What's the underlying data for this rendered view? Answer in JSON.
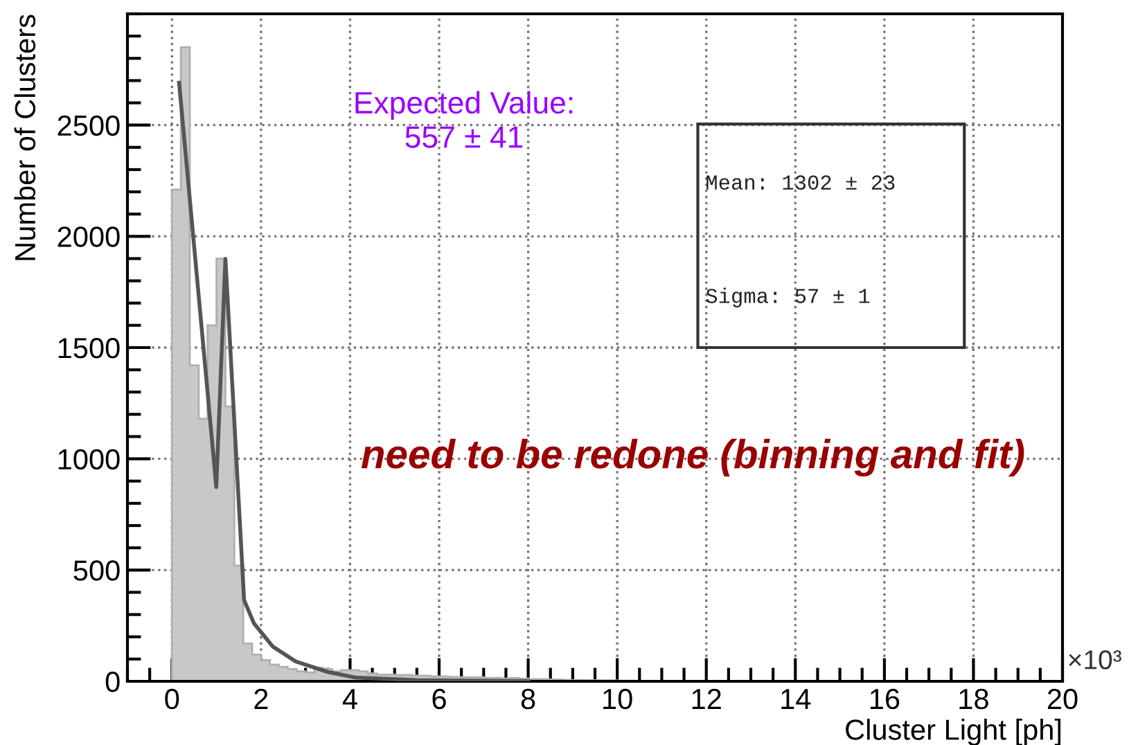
{
  "chart_data": {
    "type": "histogram",
    "xlabel": "Cluster Light [ph]",
    "ylabel": "Number of Clusters",
    "bins": [
      0,
      0.2,
      0.4,
      0.6,
      0.8,
      1.0,
      1.2,
      1.4,
      1.6,
      1.8,
      2.0,
      2.2,
      2.4,
      2.6,
      2.8,
      3.0,
      3.2,
      3.4,
      3.6,
      3.8,
      4.0,
      4.2,
      4.4,
      4.6,
      4.8,
      5.0,
      5.2,
      5.4,
      5.6,
      5.8,
      6.0,
      6.2,
      6.4,
      6.6,
      6.8,
      7.0,
      7.2,
      7.4,
      7.6,
      7.8,
      8.0,
      8.2,
      8.4,
      8.6,
      8.8,
      9.0,
      9.2,
      9.4,
      9.6,
      9.8,
      10.0,
      10.2,
      10.4,
      10.6,
      10.8,
      11.0,
      11.2,
      11.4
    ],
    "values": [
      2210,
      2850,
      1420,
      1180,
      1600,
      1900,
      1235,
      520,
      170,
      120,
      95,
      75,
      65,
      55,
      45,
      40,
      60,
      55,
      45,
      50,
      50,
      45,
      35,
      30,
      30,
      28,
      28,
      25,
      25,
      22,
      22,
      20,
      18,
      18,
      18,
      15,
      15,
      12,
      15,
      12,
      10,
      10,
      8,
      8,
      6,
      6,
      5,
      5,
      4,
      4,
      3,
      3,
      2,
      2,
      2,
      1,
      1
    ],
    "color": "#c8c8c8",
    "series": [
      {
        "type": "line",
        "color": "#555555",
        "x": [
          0.16,
          0.995,
          1.2,
          1.62,
          1.84,
          2.26,
          2.78,
          3.5,
          4.12,
          5.5,
          8.0
        ],
        "values": [
          2690,
          873,
          1899,
          365,
          261,
          157,
          89,
          42,
          17,
          5,
          1
        ]
      }
    ],
    "xlim": [
      -1,
      20
    ],
    "ylim": [
      0,
      3000
    ],
    "xticks": [
      0,
      2,
      4,
      6,
      8,
      10,
      12,
      14,
      16,
      18,
      20
    ],
    "yticks": [
      0,
      500,
      1000,
      1500,
      2000,
      2500
    ],
    "grid": true,
    "annotations": [
      "×10³",
      "Expected Value:\n557 ± 41",
      "need to be redone (binning and fit)",
      "Mean: 1302 ± 23",
      "Sigma: 57 ± 1"
    ]
  }
}
